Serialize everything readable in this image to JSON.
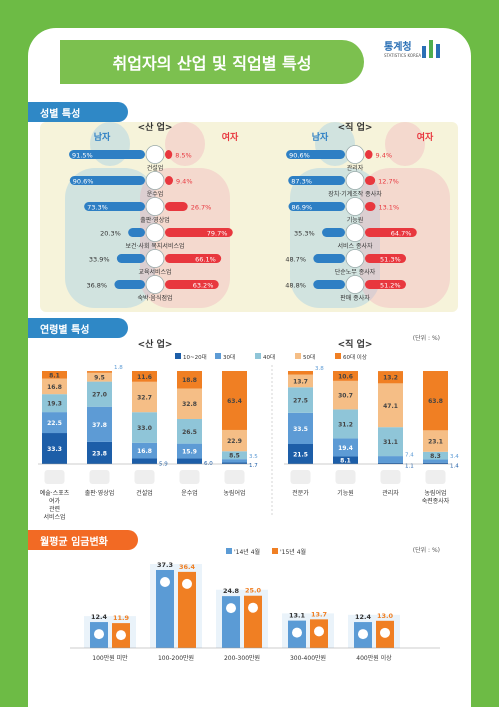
{
  "page_title": "취업자의 산업 및 직업별 특성",
  "logo": {
    "name": "통계청",
    "sub": "STATISTICS KOREA"
  },
  "gender": {
    "label": "성별 특성",
    "male": "남자",
    "female": "여자",
    "industry_title": "<산 업>",
    "occupation_title": "<직 업>"
  },
  "age": {
    "label": "연령별 특성",
    "unit": "(단위 : %)",
    "industry_title": "<산 업>",
    "occupation_title": "<직 업>"
  },
  "wage": {
    "label": "월평균 임금변화",
    "unit": "(단위 : %)"
  },
  "colors": {
    "male": "#2e7fc4",
    "female": "#e8373e",
    "age10_20": "#1d5ea8",
    "age30": "#5d9bd5",
    "age40": "#8fc5d8",
    "age50": "#f5be86",
    "age60": "#f07f23",
    "wage14": "#5b9bd5",
    "wage15": "#f07f23"
  },
  "chart_data": [
    {
      "type": "bar",
      "title": "<산 업>",
      "orientation": "diverging",
      "categories": [
        "건설업",
        "운수업",
        "출판·영상업",
        "보건·사회 복지서비스업",
        "교육서비스업",
        "숙박·음식점업"
      ],
      "series": [
        {
          "name": "남자",
          "values": [
            91.5,
            90.6,
            73.3,
            20.3,
            33.9,
            36.8
          ]
        },
        {
          "name": "여자",
          "values": [
            8.5,
            9.4,
            26.7,
            79.7,
            66.1,
            63.2
          ]
        }
      ]
    },
    {
      "type": "bar",
      "title": "<직 업>",
      "orientation": "diverging",
      "categories": [
        "관리자",
        "장치·기계조작 종사자",
        "기능원",
        "서비스 종사자",
        "단순노무 종사자",
        "판매 종사자"
      ],
      "series": [
        {
          "name": "남자",
          "values": [
            90.6,
            87.3,
            86.9,
            35.3,
            48.7,
            48.8
          ]
        },
        {
          "name": "여자",
          "values": [
            9.4,
            12.7,
            13.1,
            64.7,
            51.3,
            51.2
          ]
        }
      ]
    },
    {
      "type": "bar",
      "stacked": true,
      "title": "<산 업>",
      "categories": [
        "예술·스포츠 여가 관련 서비스업",
        "출판·영상업",
        "건설업",
        "운수업",
        "농림어업"
      ],
      "series": [
        {
          "name": "10~20대",
          "values": [
            33.3,
            23.8,
            5.9,
            6.0,
            1.7
          ]
        },
        {
          "name": "30대",
          "values": [
            22.5,
            37.8,
            16.8,
            15.9,
            3.5
          ]
        },
        {
          "name": "40대",
          "values": [
            19.3,
            27.0,
            33.0,
            26.5,
            8.5
          ]
        },
        {
          "name": "50대",
          "values": [
            16.8,
            9.5,
            32.7,
            32.8,
            22.9
          ]
        },
        {
          "name": "60대 이상",
          "values": [
            8.1,
            1.8,
            11.6,
            18.8,
            63.4
          ]
        }
      ],
      "ylim": [
        0,
        100
      ]
    },
    {
      "type": "bar",
      "stacked": true,
      "title": "<직 업>",
      "categories": [
        "전문가",
        "기능원",
        "관리자",
        "농림어업 숙련종사자"
      ],
      "series": [
        {
          "name": "10~20대",
          "values": [
            21.5,
            8.1,
            1.1,
            1.4
          ]
        },
        {
          "name": "30대",
          "values": [
            33.5,
            19.4,
            7.4,
            3.4
          ]
        },
        {
          "name": "40대",
          "values": [
            27.5,
            31.2,
            31.1,
            8.3
          ]
        },
        {
          "name": "50대",
          "values": [
            13.7,
            30.7,
            47.1,
            23.1
          ]
        },
        {
          "name": "60대 이상",
          "values": [
            3.8,
            10.6,
            13.2,
            63.8
          ]
        }
      ],
      "ylim": [
        0,
        100
      ]
    },
    {
      "type": "bar",
      "title": "월평균 임금변화",
      "categories": [
        "100만원 미만",
        "100-200만원",
        "200-300만원",
        "300-400만원",
        "400만원 이상"
      ],
      "series": [
        {
          "name": "'14년 4월",
          "values": [
            12.4,
            37.3,
            24.8,
            13.1,
            12.4
          ]
        },
        {
          "name": "'15년 4월",
          "values": [
            11.9,
            36.4,
            25.0,
            13.7,
            13.0
          ]
        }
      ]
    }
  ]
}
